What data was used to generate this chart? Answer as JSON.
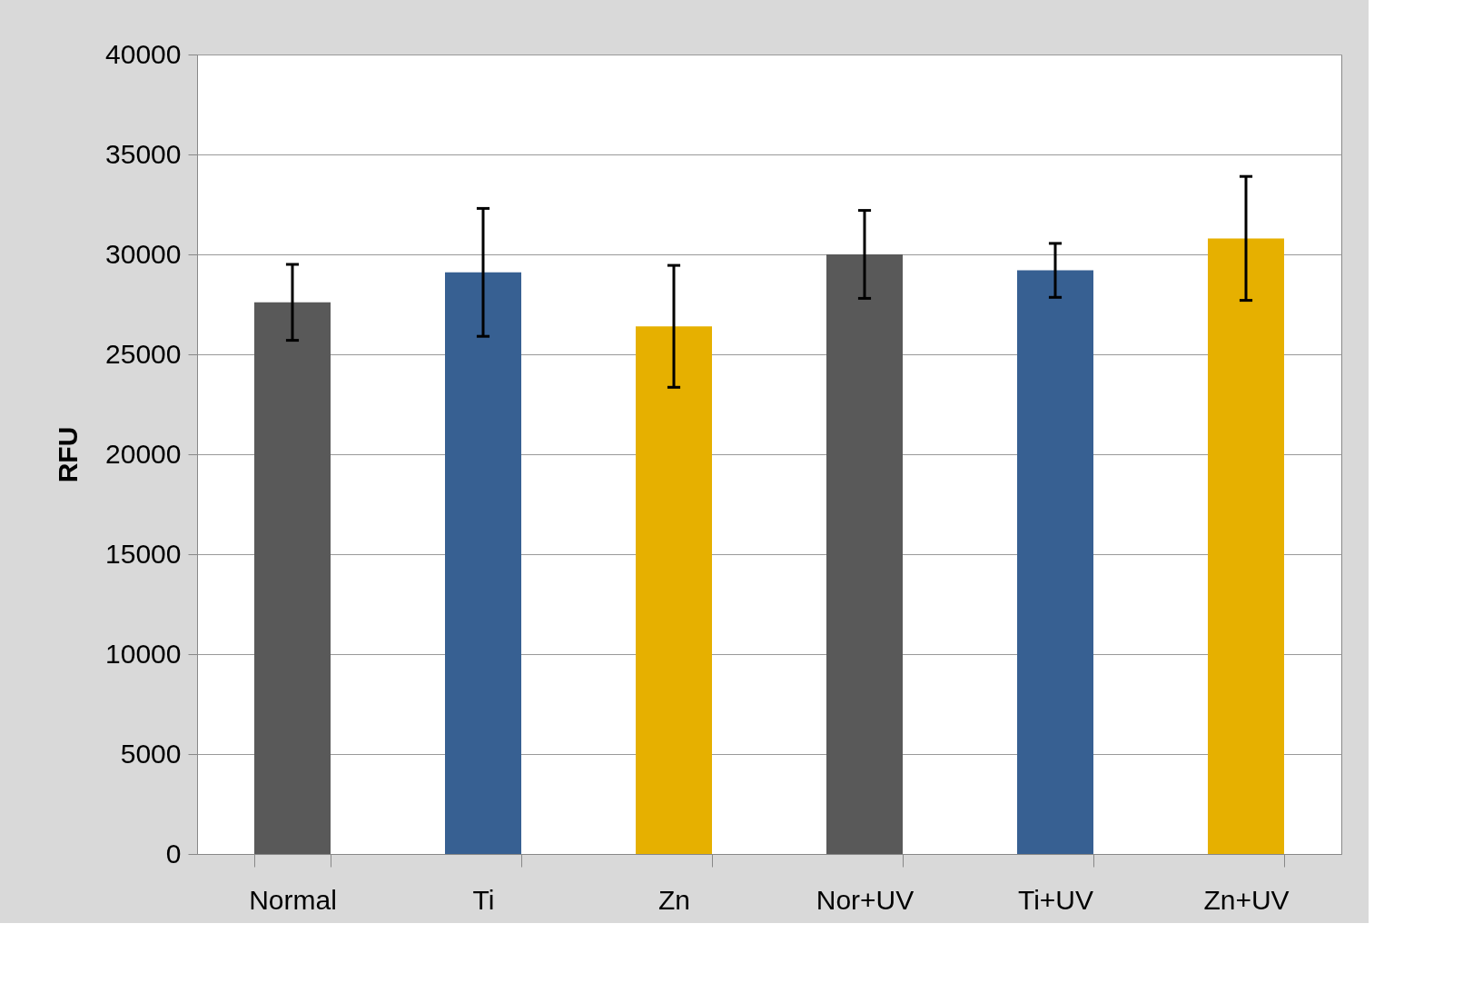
{
  "chart_data": {
    "type": "bar",
    "ylabel": "RFU",
    "categories": [
      "Normal",
      "Ti",
      "Zn",
      "Nor+UV",
      "Ti+UV",
      "Zn+UV"
    ],
    "values": [
      27600,
      29100,
      26400,
      30000,
      29200,
      30800
    ],
    "errors": [
      1900,
      3200,
      3050,
      2200,
      1350,
      3100
    ],
    "colors": [
      "#595959",
      "#376092",
      "#e6b000",
      "#595959",
      "#376092",
      "#e6b000"
    ],
    "ylim": [
      0,
      40000
    ],
    "yticks": [
      0,
      5000,
      10000,
      15000,
      20000,
      25000,
      30000,
      35000,
      40000
    ],
    "grid": "y",
    "legend": false
  }
}
